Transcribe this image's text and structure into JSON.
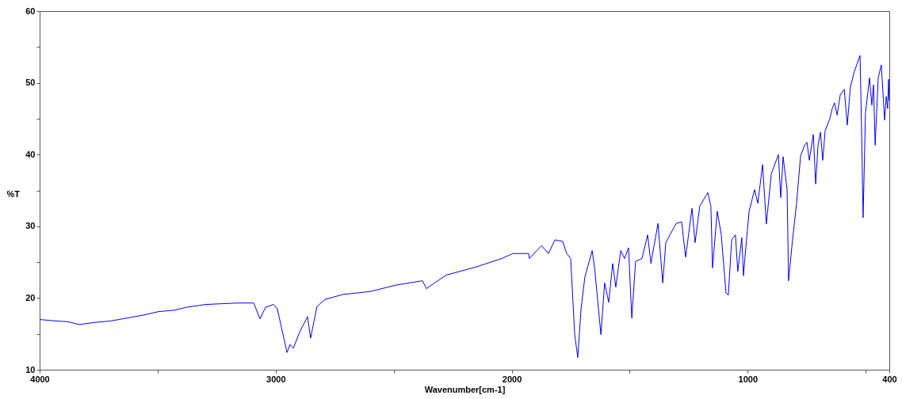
{
  "chart_data": {
    "type": "line",
    "xlabel": "Wavenumber[cm-1]",
    "ylabel": "%T",
    "xlim": [
      4000,
      400
    ],
    "ylim": [
      10,
      60
    ],
    "xticks": [
      4000,
      {
        "value": 3500,
        "label": null
      },
      3000,
      {
        "value": 2500,
        "label": null
      },
      2000,
      {
        "value": 1500,
        "label": null
      },
      1000,
      {
        "value": 500,
        "label": null
      },
      400
    ],
    "yticks": [
      10,
      {
        "value": 15,
        "label": null
      },
      20,
      {
        "value": 25,
        "label": null
      },
      30,
      {
        "value": 35,
        "label": null
      },
      40,
      {
        "value": 45,
        "label": null
      },
      50,
      {
        "value": 55,
        "label": null
      },
      60
    ],
    "grid": false,
    "line_style": "solid",
    "marker": "none",
    "series": [
      {
        "color": "#0000ff",
        "x": [
          4000,
          3933,
          3882,
          3832,
          3765,
          3698,
          3631,
          3563,
          3496,
          3429,
          3379,
          3295,
          3228,
          3160,
          3093,
          3066,
          3043,
          3009,
          2993,
          2952,
          2939,
          2925,
          2899,
          2865,
          2852,
          2825,
          2791,
          2714,
          2600,
          2489,
          2378,
          2361,
          2331,
          2277,
          2153,
          2042,
          1995,
          1928,
          1925,
          1874,
          1844,
          1817,
          1784,
          1767,
          1750,
          1733,
          1720,
          1706,
          1690,
          1659,
          1649,
          1622,
          1606,
          1589,
          1572,
          1559,
          1538,
          1522,
          1505,
          1491,
          1475,
          1448,
          1424,
          1410,
          1380,
          1360,
          1347,
          1323,
          1303,
          1280,
          1263,
          1236,
          1223,
          1203,
          1169,
          1156,
          1149,
          1129,
          1112,
          1092,
          1082,
          1068,
          1052,
          1042,
          1025,
          1018,
          1008,
          994,
          971,
          957,
          937,
          921,
          900,
          870,
          860,
          850,
          833,
          827,
          810,
          793,
          776,
          759,
          749,
          739,
          722,
          712,
          702,
          692,
          682,
          672,
          652,
          642,
          632,
          621,
          608,
          591,
          578,
          565,
          548,
          524,
          518,
          511,
          501,
          484,
          474,
          467,
          460,
          447,
          434,
          420,
          413,
          407,
          403,
          400
        ],
        "values": [
          17.0,
          16.8,
          16.7,
          16.3,
          16.6,
          16.8,
          17.2,
          17.6,
          18.1,
          18.3,
          18.7,
          19.1,
          19.2,
          19.3,
          19.3,
          17.1,
          18.7,
          19.1,
          18.5,
          12.4,
          13.5,
          13.0,
          15.2,
          17.4,
          14.4,
          18.8,
          19.8,
          20.5,
          20.9,
          21.8,
          22.4,
          21.3,
          22.0,
          23.2,
          24.3,
          25.5,
          26.2,
          26.2,
          25.5,
          27.3,
          26.2,
          28.1,
          27.9,
          26.2,
          25.5,
          14.9,
          11.7,
          18.5,
          22.9,
          26.6,
          24.3,
          14.9,
          22.1,
          19.4,
          24.8,
          21.5,
          26.6,
          25.5,
          27.0,
          17.2,
          25.1,
          25.5,
          28.8,
          24.8,
          30.4,
          22.1,
          27.7,
          29.2,
          30.4,
          30.6,
          25.7,
          32.5,
          27.7,
          32.8,
          34.7,
          32.8,
          24.2,
          32.1,
          28.8,
          20.7,
          20.4,
          28.1,
          28.8,
          23.7,
          28.4,
          23.1,
          27.0,
          32.1,
          35.1,
          33.2,
          38.6,
          30.3,
          37.3,
          40.0,
          34.0,
          39.7,
          35.1,
          22.4,
          28.1,
          33.2,
          39.8,
          41.3,
          41.7,
          39.2,
          42.8,
          35.9,
          41.3,
          43.1,
          39.2,
          43.3,
          45.0,
          46.4,
          47.2,
          45.5,
          48.3,
          49.1,
          44.1,
          49.4,
          51.6,
          53.8,
          44.2,
          31.2,
          45.8,
          50.7,
          46.9,
          49.7,
          41.3,
          50.7,
          52.5,
          44.8,
          48.1,
          46.4,
          50.5,
          47.5
        ]
      }
    ]
  }
}
